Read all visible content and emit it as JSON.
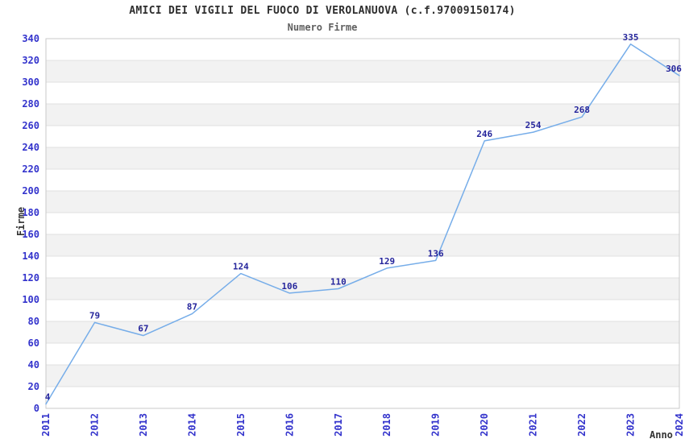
{
  "chart_data": {
    "type": "line",
    "title": "AMICI DEI VIGILI DEL FUOCO DI VEROLANUOVA (c.f.97009150174)",
    "subtitle": "Numero Firme",
    "xlabel": "Anno",
    "ylabel": "Firme",
    "categories": [
      "2011",
      "2012",
      "2013",
      "2014",
      "2015",
      "2016",
      "2017",
      "2018",
      "2019",
      "2020",
      "2021",
      "2022",
      "2023",
      "2024"
    ],
    "values": [
      4,
      79,
      67,
      87,
      124,
      106,
      110,
      129,
      136,
      246,
      254,
      268,
      335,
      306
    ],
    "ylim": [
      0,
      340
    ],
    "y_tick_step": 20,
    "grid": "horizontal-gridlines-with-alternating-bands",
    "legend_position": "none",
    "x_tick_label_rotation_deg": 90,
    "data_labels_shown": true,
    "colors": {
      "line": "#76ade9",
      "band": "#f2f2f2",
      "gridline": "#e0e0e0",
      "plot_border": "#c9c9c9",
      "axis_tick_label": "#3333cc",
      "data_label": "#26269c",
      "title": "#2e2e2e",
      "subtitle": "#5f5f5f",
      "axis_title": "#333333",
      "background": "#ffffff"
    }
  }
}
